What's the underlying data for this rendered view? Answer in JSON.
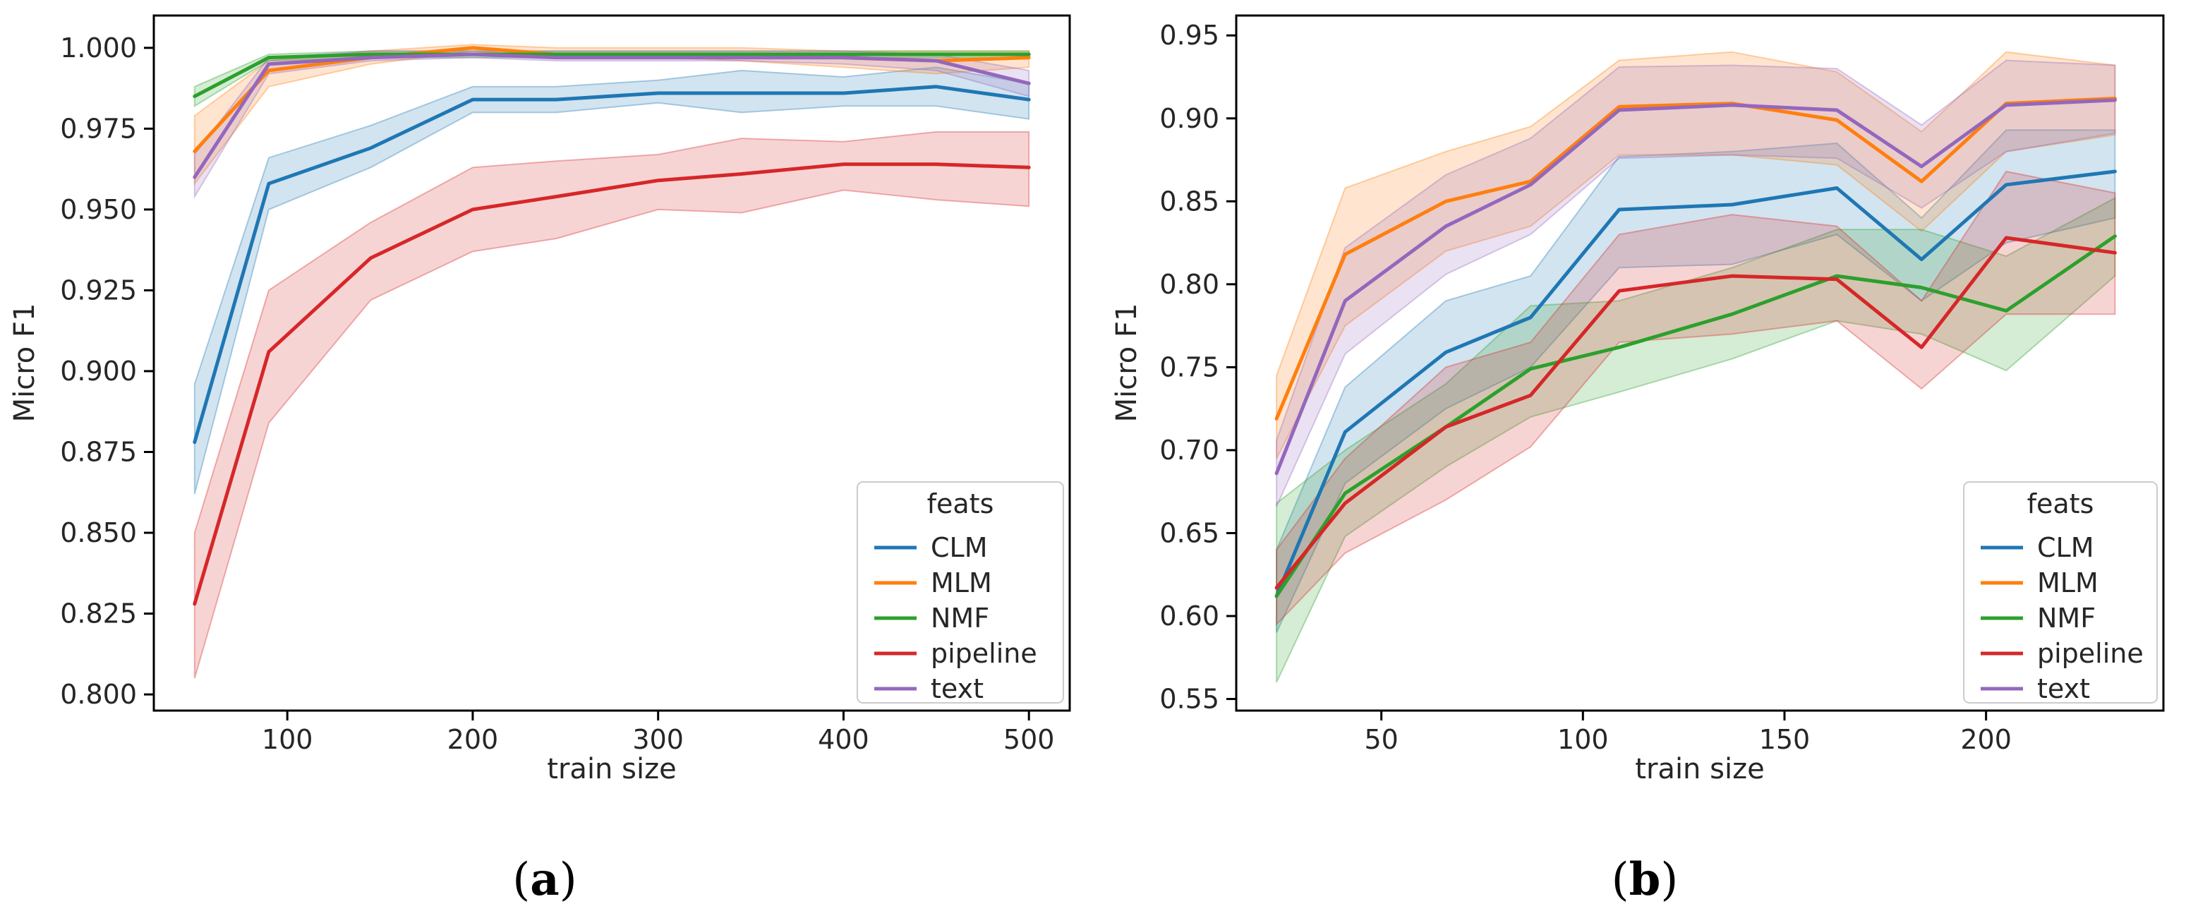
{
  "chart_data": [
    {
      "type": "line",
      "panel_label": "(a)",
      "panel_letter": "a",
      "xlabel": "train size",
      "ylabel": "Micro F1",
      "xlim": [
        28,
        522
      ],
      "ylim": [
        0.795,
        1.01
      ],
      "xticks": [
        100,
        200,
        300,
        400,
        500
      ],
      "yticks": [
        0.8,
        0.825,
        0.85,
        0.875,
        0.9,
        0.925,
        0.95,
        0.975,
        1.0
      ],
      "ytick_labels": [
        "0.800",
        "0.825",
        "0.850",
        "0.875",
        "0.900",
        "0.925",
        "0.950",
        "0.975",
        "1.000"
      ],
      "grid": false,
      "legend": {
        "title": "feats",
        "position": "lower-right"
      },
      "x": [
        50,
        90,
        145,
        200,
        245,
        300,
        345,
        400,
        450,
        500
      ],
      "series": [
        {
          "name": "CLM",
          "color": "#1f77b4",
          "values": [
            0.878,
            0.958,
            0.969,
            0.984,
            0.984,
            0.986,
            0.986,
            0.986,
            0.988,
            0.984
          ],
          "lower": [
            0.862,
            0.95,
            0.963,
            0.98,
            0.98,
            0.983,
            0.98,
            0.982,
            0.982,
            0.978
          ],
          "upper": [
            0.896,
            0.966,
            0.976,
            0.988,
            0.988,
            0.99,
            0.993,
            0.991,
            0.994,
            0.989
          ]
        },
        {
          "name": "MLM",
          "color": "#ff7f0e",
          "values": [
            0.968,
            0.993,
            0.997,
            1.0,
            0.998,
            0.998,
            0.998,
            0.997,
            0.996,
            0.997
          ],
          "lower": [
            0.958,
            0.988,
            0.995,
            0.999,
            0.997,
            0.997,
            0.996,
            0.994,
            0.992,
            0.994
          ],
          "upper": [
            0.979,
            0.996,
            0.999,
            1.001,
            1.0,
            1.0,
            1.0,
            0.999,
            0.999,
            0.999
          ]
        },
        {
          "name": "NMF",
          "color": "#2ca02c",
          "values": [
            0.985,
            0.997,
            0.998,
            0.998,
            0.998,
            0.998,
            0.998,
            0.998,
            0.998,
            0.998
          ],
          "lower": [
            0.982,
            0.996,
            0.997,
            0.997,
            0.997,
            0.997,
            0.997,
            0.997,
            0.997,
            0.997
          ],
          "upper": [
            0.988,
            0.998,
            0.999,
            0.999,
            0.999,
            0.999,
            0.999,
            0.999,
            0.999,
            0.999
          ]
        },
        {
          "name": "pipeline",
          "color": "#d62728",
          "values": [
            0.828,
            0.906,
            0.935,
            0.95,
            0.954,
            0.959,
            0.961,
            0.964,
            0.964,
            0.963
          ],
          "lower": [
            0.805,
            0.884,
            0.922,
            0.937,
            0.941,
            0.95,
            0.949,
            0.956,
            0.953,
            0.951
          ],
          "upper": [
            0.85,
            0.925,
            0.946,
            0.963,
            0.965,
            0.967,
            0.972,
            0.971,
            0.974,
            0.974
          ]
        },
        {
          "name": "text",
          "color": "#9467bd",
          "values": [
            0.96,
            0.995,
            0.997,
            0.998,
            0.997,
            0.997,
            0.997,
            0.997,
            0.996,
            0.989
          ],
          "lower": [
            0.954,
            0.992,
            0.996,
            0.997,
            0.996,
            0.996,
            0.996,
            0.995,
            0.993,
            0.985
          ],
          "upper": [
            0.967,
            0.997,
            0.999,
            0.999,
            0.999,
            0.999,
            0.999,
            0.999,
            0.998,
            0.993
          ]
        }
      ]
    },
    {
      "type": "line",
      "panel_label": "(b)",
      "panel_letter": "b",
      "xlabel": "train size",
      "ylabel": "Micro F1",
      "xlim": [
        14,
        244
      ],
      "ylim": [
        0.543,
        0.962
      ],
      "xticks": [
        50,
        100,
        150,
        200
      ],
      "yticks": [
        0.55,
        0.6,
        0.65,
        0.7,
        0.75,
        0.8,
        0.85,
        0.9,
        0.95
      ],
      "ytick_labels": [
        "0.55",
        "0.60",
        "0.65",
        "0.70",
        "0.75",
        "0.80",
        "0.85",
        "0.90",
        "0.95"
      ],
      "grid": false,
      "legend": {
        "title": "feats",
        "position": "lower-right"
      },
      "x": [
        24,
        41,
        66,
        87,
        109,
        137,
        163,
        184,
        205,
        232
      ],
      "series": [
        {
          "name": "CLM",
          "color": "#1f77b4",
          "values": [
            0.612,
            0.711,
            0.759,
            0.78,
            0.845,
            0.848,
            0.858,
            0.815,
            0.86,
            0.868
          ],
          "lower": [
            0.59,
            0.68,
            0.725,
            0.75,
            0.81,
            0.812,
            0.83,
            0.79,
            0.825,
            0.84
          ],
          "upper": [
            0.64,
            0.738,
            0.79,
            0.805,
            0.877,
            0.88,
            0.885,
            0.84,
            0.893,
            0.893
          ]
        },
        {
          "name": "MLM",
          "color": "#ff7f0e",
          "values": [
            0.719,
            0.818,
            0.85,
            0.862,
            0.907,
            0.909,
            0.899,
            0.862,
            0.909,
            0.912
          ],
          "lower": [
            0.695,
            0.775,
            0.82,
            0.835,
            0.878,
            0.878,
            0.872,
            0.832,
            0.88,
            0.89
          ],
          "upper": [
            0.745,
            0.858,
            0.88,
            0.895,
            0.935,
            0.94,
            0.928,
            0.892,
            0.94,
            0.932
          ]
        },
        {
          "name": "NMF",
          "color": "#2ca02c",
          "values": [
            0.612,
            0.674,
            0.714,
            0.749,
            0.762,
            0.782,
            0.805,
            0.798,
            0.784,
            0.829
          ],
          "lower": [
            0.56,
            0.648,
            0.69,
            0.72,
            0.735,
            0.755,
            0.778,
            0.77,
            0.748,
            0.805
          ],
          "upper": [
            0.668,
            0.7,
            0.74,
            0.787,
            0.79,
            0.81,
            0.833,
            0.833,
            0.817,
            0.852
          ]
        },
        {
          "name": "pipeline",
          "color": "#d62728",
          "values": [
            0.617,
            0.668,
            0.714,
            0.733,
            0.796,
            0.805,
            0.803,
            0.762,
            0.828,
            0.819
          ],
          "lower": [
            0.595,
            0.638,
            0.67,
            0.702,
            0.765,
            0.77,
            0.778,
            0.737,
            0.782,
            0.782
          ],
          "upper": [
            0.64,
            0.695,
            0.75,
            0.765,
            0.83,
            0.842,
            0.835,
            0.79,
            0.868,
            0.855
          ]
        },
        {
          "name": "text",
          "color": "#9467bd",
          "values": [
            0.686,
            0.79,
            0.835,
            0.86,
            0.905,
            0.908,
            0.905,
            0.871,
            0.908,
            0.911
          ],
          "lower": [
            0.666,
            0.758,
            0.806,
            0.83,
            0.876,
            0.878,
            0.876,
            0.846,
            0.88,
            0.891
          ],
          "upper": [
            0.706,
            0.822,
            0.866,
            0.888,
            0.931,
            0.932,
            0.93,
            0.896,
            0.935,
            0.932
          ]
        }
      ]
    }
  ]
}
